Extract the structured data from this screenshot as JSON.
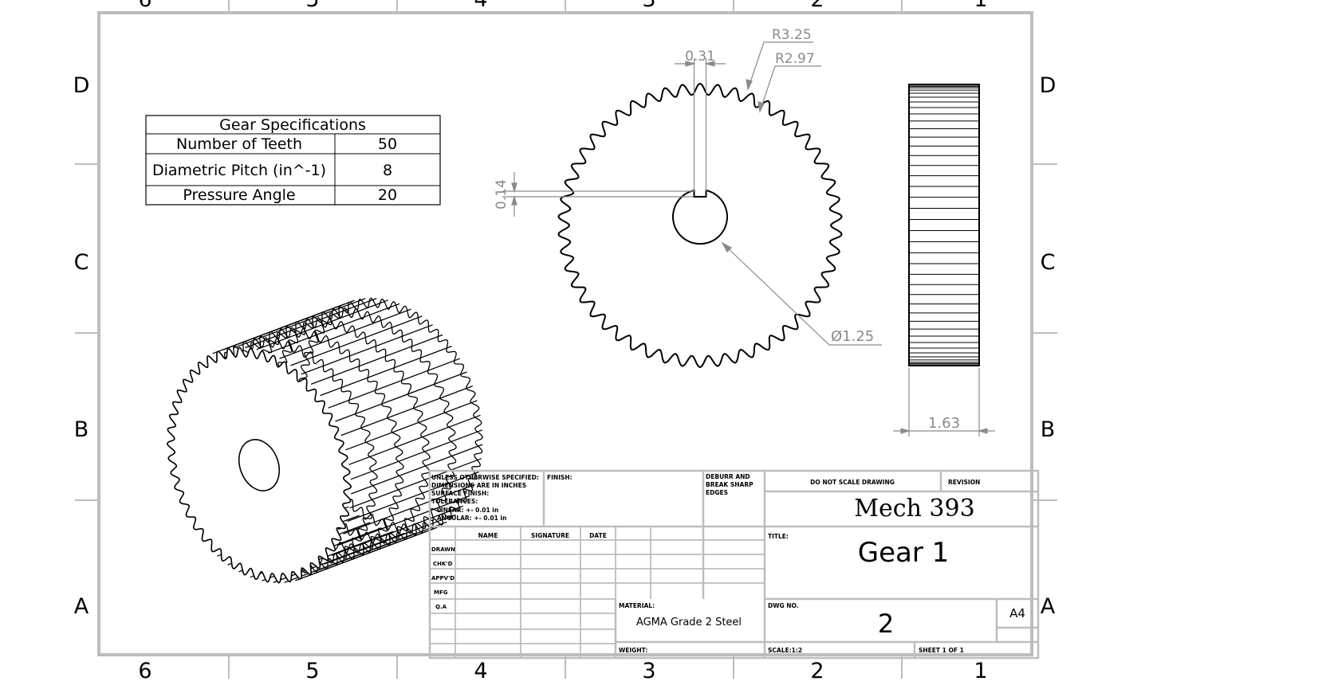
{
  "zones": {
    "columns": [
      "6",
      "5",
      "4",
      "3",
      "2",
      "1"
    ],
    "rows": [
      "D",
      "C",
      "B",
      "A"
    ]
  },
  "spec_table": {
    "title": "Gear Specifications",
    "rows": [
      {
        "label": "Number of Teeth",
        "value": "50"
      },
      {
        "label": "Diametric Pitch (in^-1)",
        "value": "8"
      },
      {
        "label": "Pressure Angle",
        "value": "20"
      }
    ]
  },
  "dimensions": {
    "outer_radius": "R3.25",
    "root_radius": "R2.97",
    "keyway_width": "0.31",
    "keyway_depth": "0.14",
    "bore_diameter": "Ø1.25",
    "face_width": "1.63"
  },
  "title_block": {
    "notes": [
      "UNLESS OTHERWISE SPECIFIED:",
      "DIMENSIONS ARE IN INCHES",
      "SURFACE FINISH:",
      "TOLERANCES:",
      "LINEAR: +- 0.01 in",
      "ANGULAR: +- 0.01 in"
    ],
    "finish_label": "FINISH:",
    "deburr": [
      "DEBURR AND",
      "BREAK SHARP",
      "EDGES"
    ],
    "do_not_scale": "DO NOT SCALE DRAWING",
    "revision_label": "REVISION",
    "company": "Mech 393",
    "headers": {
      "name": "NAME",
      "signature": "SIGNATURE",
      "date": "DATE"
    },
    "row_labels": [
      "DRAWN",
      "CHK'D",
      "APPV'D",
      "MFG",
      "Q.A"
    ],
    "title_label": "TITLE:",
    "title": "Gear 1",
    "material_label": "MATERIAL:",
    "material": "AGMA Grade 2 Steel",
    "dwg_no_label": "DWG NO.",
    "dwg_no": "2",
    "size": "A4",
    "weight_label": "WEIGHT:",
    "scale": "SCALE:1:2",
    "sheet": "SHEET 1 OF 1"
  }
}
